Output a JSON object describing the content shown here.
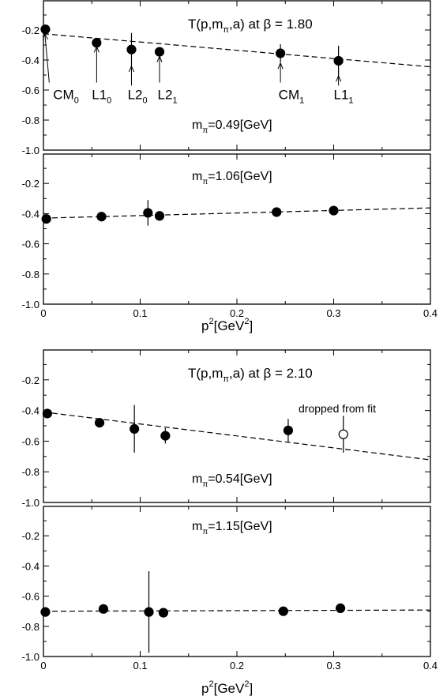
{
  "figure": {
    "top_title": "T(p,m",
    "top_title_sub": "π",
    "top_title_rest": ",a) at β = 1.80",
    "bottom_title": "T(p,m",
    "bottom_title_sub": "π",
    "bottom_title_rest": ",a) at β = 2.10",
    "xlabel_main": "p",
    "xlabel_sup": "2",
    "xlabel_mid": "[GeV",
    "xlabel_sup2": "2",
    "xlabel_end": "]"
  },
  "chart_data": [
    {
      "type": "scatter",
      "title": "T(p,mπ,a) at β = 1.80",
      "label": "mπ=0.49[GeV]",
      "label_main": "m",
      "label_sub": "π",
      "label_rest": "=0.49[GeV]",
      "xlim": [
        0,
        0.4
      ],
      "ylim": [
        -1.0,
        0.0
      ],
      "yticks": [
        -1.0,
        -0.8,
        -0.6,
        -0.4,
        -0.2
      ],
      "ytick_labels": [
        "-1.0",
        "-0.8",
        "-0.6",
        "-0.4",
        "-0.2"
      ],
      "xticks": [],
      "xtick_labels": [],
      "points": [
        {
          "x": 0.002,
          "y": -0.195,
          "err": 0.01,
          "open": false
        },
        {
          "x": 0.055,
          "y": -0.285,
          "err": 0.02,
          "open": false
        },
        {
          "x": 0.091,
          "y": -0.33,
          "err": 0.11,
          "open": false
        },
        {
          "x": 0.12,
          "y": -0.345,
          "err": 0.03,
          "open": false
        },
        {
          "x": 0.245,
          "y": -0.355,
          "err": 0.06,
          "open": false
        },
        {
          "x": 0.305,
          "y": -0.405,
          "err": 0.1,
          "open": false
        }
      ],
      "fit": {
        "y0": -0.225,
        "slope": -0.55
      },
      "annotations": [
        {
          "main": "CM",
          "sub": "0",
          "text_x": 0.01,
          "text_y": -0.66,
          "arrow_from": [
            0.006,
            -0.55
          ],
          "arrow_to": [
            0.0015,
            -0.225
          ]
        },
        {
          "main": "L1",
          "sub": "0",
          "text_x": 0.05,
          "text_y": -0.66,
          "arrow_from": [
            0.055,
            -0.55
          ],
          "arrow_to": [
            0.055,
            -0.31
          ]
        },
        {
          "main": "L2",
          "sub": "0",
          "text_x": 0.087,
          "text_y": -0.66,
          "arrow_from": [
            0.091,
            -0.57
          ],
          "arrow_to": [
            0.091,
            -0.44
          ]
        },
        {
          "main": "L2",
          "sub": "1",
          "text_x": 0.118,
          "text_y": -0.66,
          "arrow_from": [
            0.12,
            -0.55
          ],
          "arrow_to": [
            0.12,
            -0.375
          ]
        },
        {
          "main": "CM",
          "sub": "1",
          "text_x": 0.243,
          "text_y": -0.66,
          "arrow_from": [
            0.245,
            -0.55
          ],
          "arrow_to": [
            0.245,
            -0.42
          ]
        },
        {
          "main": "L1",
          "sub": "1",
          "text_x": 0.3,
          "text_y": -0.66,
          "arrow_from": [
            0.305,
            -0.57
          ],
          "arrow_to": [
            0.305,
            -0.505
          ]
        }
      ]
    },
    {
      "type": "scatter",
      "label": "mπ=1.06[GeV]",
      "label_main": "m",
      "label_sub": "π",
      "label_rest": "=1.06[GeV]",
      "xlim": [
        0,
        0.4
      ],
      "ylim": [
        -1.0,
        0.0
      ],
      "yticks": [
        -1.0,
        -0.8,
        -0.6,
        -0.4,
        -0.2
      ],
      "ytick_labels": [
        "-1.0",
        "-0.8",
        "-0.6",
        "-0.4",
        "-0.2"
      ],
      "xticks": [
        0,
        0.1,
        0.2,
        0.3,
        0.4
      ],
      "xtick_labels": [
        "0",
        "0.1",
        "0.2",
        "0.3",
        "0.4"
      ],
      "xlabel": "p²[GeV²]",
      "points": [
        {
          "x": 0.003,
          "y": -0.435,
          "err": 0.03,
          "open": false
        },
        {
          "x": 0.06,
          "y": -0.42,
          "err": 0.0,
          "open": false
        },
        {
          "x": 0.108,
          "y": -0.395,
          "err": 0.085,
          "open": false
        },
        {
          "x": 0.12,
          "y": -0.415,
          "err": 0.0,
          "open": false
        },
        {
          "x": 0.241,
          "y": -0.39,
          "err": 0.0,
          "open": false
        },
        {
          "x": 0.3,
          "y": -0.38,
          "err": 0.0,
          "open": false
        }
      ],
      "fit": {
        "y0": -0.43,
        "slope": 0.17
      },
      "annotations": []
    },
    {
      "type": "scatter",
      "title": "T(p,mπ,a) at β = 2.10",
      "label": "mπ=0.54[GeV]",
      "label_main": "m",
      "label_sub": "π",
      "label_rest": "=0.54[GeV]",
      "note": "dropped from fit",
      "xlim": [
        0,
        0.4
      ],
      "ylim": [
        -1.0,
        0.0
      ],
      "yticks": [
        -1.0,
        -0.8,
        -0.6,
        -0.4,
        -0.2
      ],
      "ytick_labels": [
        "-1.0",
        "-0.8",
        "-0.6",
        "-0.4",
        "-0.2"
      ],
      "xticks": [],
      "xtick_labels": [],
      "points": [
        {
          "x": 0.004,
          "y": -0.42,
          "err": 0.0,
          "open": false
        },
        {
          "x": 0.058,
          "y": -0.48,
          "err": 0.0,
          "open": false
        },
        {
          "x": 0.094,
          "y": -0.52,
          "err": 0.155,
          "open": false
        },
        {
          "x": 0.126,
          "y": -0.565,
          "err": 0.05,
          "open": false
        },
        {
          "x": 0.253,
          "y": -0.53,
          "err": 0.075,
          "open": false
        },
        {
          "x": 0.31,
          "y": -0.555,
          "err": 0.12,
          "open": true
        }
      ],
      "fit": {
        "y0": -0.41,
        "slope": -0.78
      },
      "annotations": []
    },
    {
      "type": "scatter",
      "label": "mπ=1.15[GeV]",
      "label_main": "m",
      "label_sub": "π",
      "label_rest": "=1.15[GeV]",
      "xlim": [
        0,
        0.4
      ],
      "ylim": [
        -1.0,
        0.0
      ],
      "yticks": [
        -1.0,
        -0.8,
        -0.6,
        -0.4,
        -0.2
      ],
      "ytick_labels": [
        "-1.0",
        "-0.8",
        "-0.6",
        "-0.4",
        "-0.2"
      ],
      "xticks": [
        0,
        0.1,
        0.2,
        0.3,
        0.4
      ],
      "xtick_labels": [
        "0",
        "0.1",
        "0.2",
        "0.3",
        "0.4"
      ],
      "xlabel": "p²[GeV²]",
      "points": [
        {
          "x": 0.002,
          "y": -0.705,
          "err": 0.0,
          "open": false
        },
        {
          "x": 0.062,
          "y": -0.685,
          "err": 0.0,
          "open": false
        },
        {
          "x": 0.109,
          "y": -0.705,
          "err": 0.27,
          "open": false
        },
        {
          "x": 0.124,
          "y": -0.71,
          "err": 0.0,
          "open": false
        },
        {
          "x": 0.248,
          "y": -0.7,
          "err": 0.0,
          "open": false
        },
        {
          "x": 0.307,
          "y": -0.68,
          "err": 0.0,
          "open": false
        }
      ],
      "fit": {
        "y0": -0.7,
        "slope": 0.02
      },
      "annotations": []
    }
  ]
}
